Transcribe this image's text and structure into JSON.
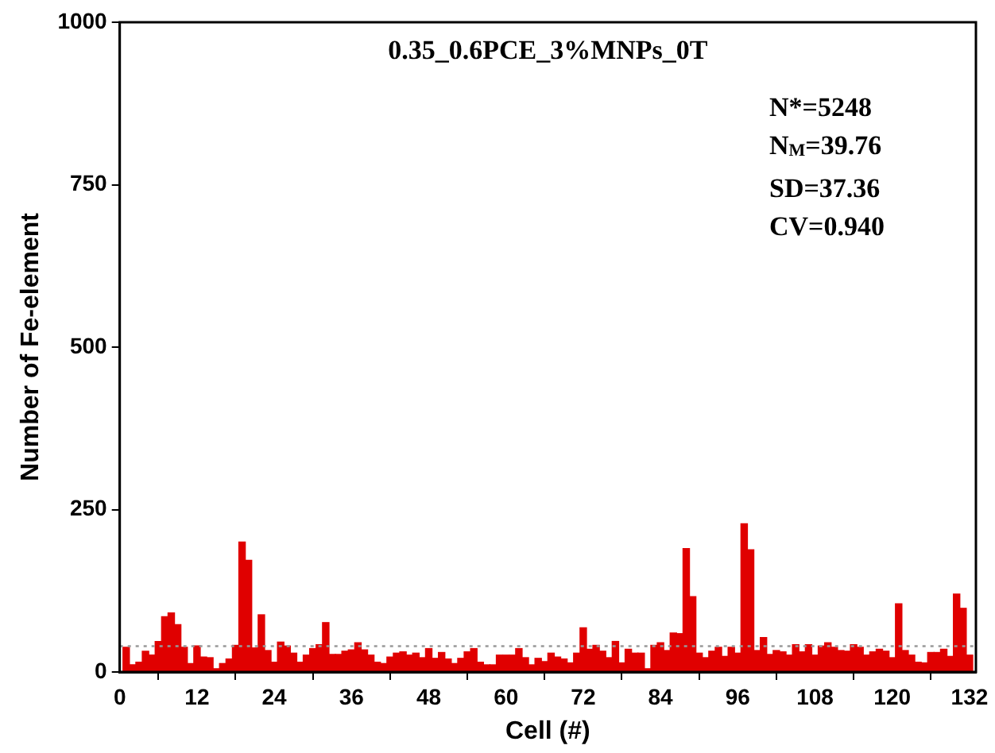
{
  "chart_data": {
    "type": "bar",
    "title": "0.35_0.6PCE_3%MNPs_0T",
    "xlabel": "Cell (#)",
    "ylabel": "Number of Fe-element",
    "x": [
      1,
      2,
      3,
      4,
      5,
      6,
      7,
      8,
      9,
      10,
      11,
      12,
      13,
      14,
      15,
      16,
      17,
      18,
      19,
      20,
      21,
      22,
      23,
      24,
      25,
      26,
      27,
      28,
      29,
      30,
      31,
      32,
      33,
      34,
      35,
      36,
      37,
      38,
      39,
      40,
      41,
      42,
      43,
      44,
      45,
      46,
      47,
      48,
      49,
      50,
      51,
      52,
      53,
      54,
      55,
      56,
      57,
      58,
      59,
      60,
      61,
      62,
      63,
      64,
      65,
      66,
      67,
      68,
      69,
      70,
      71,
      72,
      73,
      74,
      75,
      76,
      77,
      78,
      79,
      80,
      81,
      82,
      83,
      84,
      85,
      86,
      87,
      88,
      89,
      90,
      91,
      92,
      93,
      94,
      95,
      96,
      97,
      98,
      99,
      100,
      101,
      102,
      103,
      104,
      105,
      106,
      107,
      108,
      109,
      110,
      111,
      112,
      113,
      114,
      115,
      116,
      117,
      118,
      119,
      120,
      121,
      122,
      123,
      124,
      125,
      126,
      127,
      128,
      129,
      130,
      131,
      132
    ],
    "values": [
      38,
      11,
      15,
      32,
      26,
      47,
      85,
      91,
      73,
      38,
      13,
      40,
      23,
      22,
      5,
      13,
      20,
      41,
      200,
      172,
      37,
      88,
      33,
      15,
      46,
      40,
      29,
      15,
      26,
      36,
      42,
      76,
      27,
      27,
      32,
      34,
      45,
      34,
      26,
      15,
      13,
      23,
      29,
      31,
      26,
      29,
      22,
      36,
      21,
      30,
      20,
      13,
      21,
      31,
      36,
      15,
      11,
      11,
      26,
      26,
      26,
      36,
      22,
      11,
      21,
      16,
      29,
      23,
      20,
      14,
      29,
      68,
      35,
      41,
      32,
      22,
      47,
      14,
      35,
      29,
      29,
      5,
      41,
      45,
      33,
      60,
      59,
      190,
      116,
      29,
      22,
      32,
      38,
      24,
      38,
      29,
      228,
      188,
      33,
      53,
      27,
      33,
      31,
      26,
      42,
      31,
      42,
      26,
      40,
      45,
      38,
      33,
      32,
      42,
      38,
      26,
      31,
      35,
      32,
      22,
      105,
      33,
      26,
      15,
      14,
      30,
      30,
      35,
      24,
      120,
      98,
      26
    ],
    "color": "#e00000",
    "xlim": [
      0,
      133
    ],
    "xticks": [
      0,
      12,
      24,
      36,
      48,
      60,
      72,
      84,
      96,
      108,
      120,
      132
    ],
    "ylim": [
      0,
      1000
    ],
    "yticks": [
      0,
      250,
      500,
      750,
      1000
    ],
    "ref_lines": [
      {
        "axis": "y",
        "value": 39.76,
        "color": "#999999",
        "line_style": "dotted"
      }
    ],
    "annotations": [
      "N*=5248",
      "N$_{M}$=39.76",
      "SD=37.36",
      "CV=0.940"
    ],
    "grid": false,
    "legend": false
  }
}
